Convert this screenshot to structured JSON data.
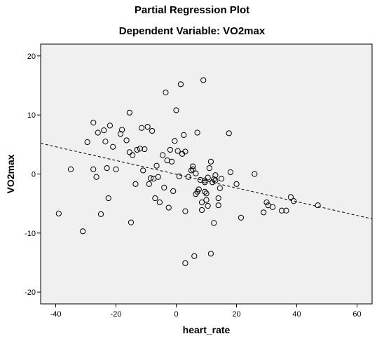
{
  "chart_data": {
    "type": "scatter",
    "title": "Partial Regression Plot",
    "subtitle": "Dependent Variable: VO2max",
    "xlabel": "heart_rate",
    "ylabel": "VO2max",
    "xlim": [
      -45,
      65
    ],
    "ylim": [
      -22,
      22
    ],
    "x_ticks": [
      -40,
      -20,
      0,
      20,
      40,
      60
    ],
    "y_ticks": [
      -20,
      -10,
      0,
      10,
      20
    ],
    "x_tick_labels": [
      "-40",
      "-20",
      "0",
      "20",
      "40",
      "60"
    ],
    "y_tick_labels": [
      "-20",
      "-10",
      "0",
      "10",
      "20"
    ],
    "grid": false,
    "legend": "none",
    "colors": {
      "plot_background": "#f0f0f0",
      "points": "#000000",
      "fit_line": "#000000"
    },
    "fit_line": {
      "style": "dashed",
      "x": [
        -45,
        65
      ],
      "y": [
        5.2,
        -7.6
      ]
    },
    "series": [
      {
        "marker": "open-circle",
        "points": [
          [
            -39,
            -6.7
          ],
          [
            -35,
            0.8
          ],
          [
            -31,
            -9.7
          ],
          [
            -29.5,
            5.4
          ],
          [
            -27.5,
            8.7
          ],
          [
            -27.5,
            0.8
          ],
          [
            -26.5,
            -0.5
          ],
          [
            -26,
            7.0
          ],
          [
            -25,
            -6.8
          ],
          [
            -24,
            7.4
          ],
          [
            -23.5,
            5.5
          ],
          [
            -23,
            1.0
          ],
          [
            -22.5,
            -4.1
          ],
          [
            -22,
            8.2
          ],
          [
            -21,
            4.6
          ],
          [
            -20,
            0.8
          ],
          [
            -18.5,
            6.8
          ],
          [
            -18,
            7.5
          ],
          [
            -16.5,
            5.7
          ],
          [
            -15.5,
            10.4
          ],
          [
            -15.5,
            3.7
          ],
          [
            -15,
            -8.2
          ],
          [
            -14.5,
            3.2
          ],
          [
            -13.5,
            -1.7
          ],
          [
            -13,
            4.1
          ],
          [
            -12,
            4.3
          ],
          [
            -11.5,
            7.8
          ],
          [
            -11,
            0.6
          ],
          [
            -10.5,
            4.2
          ],
          [
            -9.5,
            8.0
          ],
          [
            -9,
            -1.7
          ],
          [
            -8.5,
            -0.7
          ],
          [
            -8,
            7.3
          ],
          [
            -7.5,
            -0.8
          ],
          [
            -7,
            -4.1
          ],
          [
            -6.5,
            1.4
          ],
          [
            -6,
            -0.5
          ],
          [
            -5.5,
            -4.8
          ],
          [
            -4.5,
            3.2
          ],
          [
            -4,
            -2.3
          ],
          [
            -3.5,
            13.8
          ],
          [
            -3,
            2.3
          ],
          [
            -2.5,
            -5.7
          ],
          [
            -2,
            4.1
          ],
          [
            -1.5,
            2.1
          ],
          [
            -1,
            -2.9
          ],
          [
            -0.5,
            5.6
          ],
          [
            0,
            10.8
          ],
          [
            0.5,
            3.9
          ],
          [
            1,
            -0.4
          ],
          [
            1.5,
            15.2
          ],
          [
            2,
            3.4
          ],
          [
            2.5,
            6.6
          ],
          [
            3,
            3.8
          ],
          [
            3,
            -6.3
          ],
          [
            3,
            -15.1
          ],
          [
            4,
            -0.5
          ],
          [
            5,
            0.6
          ],
          [
            5.5,
            1.3
          ],
          [
            5.5,
            0.8
          ],
          [
            6,
            -13.9
          ],
          [
            6.5,
            -3.4
          ],
          [
            6.5,
            0.1
          ],
          [
            7,
            -3.0
          ],
          [
            7,
            7.0
          ],
          [
            7.5,
            -2.6
          ],
          [
            8,
            -1.0
          ],
          [
            8.5,
            -6.1
          ],
          [
            8.5,
            -4.8
          ],
          [
            9,
            15.9
          ],
          [
            9.5,
            -3.0
          ],
          [
            9.5,
            -1.1
          ],
          [
            9.5,
            -1.4
          ],
          [
            10,
            -3.3
          ],
          [
            10,
            -4.4
          ],
          [
            10.5,
            -5.4
          ],
          [
            10.5,
            -0.6
          ],
          [
            11,
            1.0
          ],
          [
            11.5,
            2.1
          ],
          [
            11.5,
            -13.5
          ],
          [
            12,
            -1.4
          ],
          [
            12.5,
            -0.9
          ],
          [
            12.5,
            -8.3
          ],
          [
            13,
            -0.2
          ],
          [
            13,
            -1.1
          ],
          [
            14,
            -4.1
          ],
          [
            14,
            -5.3
          ],
          [
            14.5,
            -2.4
          ],
          [
            15,
            -0.8
          ],
          [
            17.5,
            6.9
          ],
          [
            18,
            0.3
          ],
          [
            20,
            -1.7
          ],
          [
            21.5,
            -7.4
          ],
          [
            26,
            0.0
          ],
          [
            29,
            -6.5
          ],
          [
            30,
            -4.8
          ],
          [
            30.5,
            -5.3
          ],
          [
            32,
            -5.6
          ],
          [
            35,
            -6.2
          ],
          [
            36.5,
            -6.2
          ],
          [
            38,
            -3.9
          ],
          [
            39,
            -4.6
          ],
          [
            47,
            -5.3
          ]
        ]
      }
    ]
  }
}
